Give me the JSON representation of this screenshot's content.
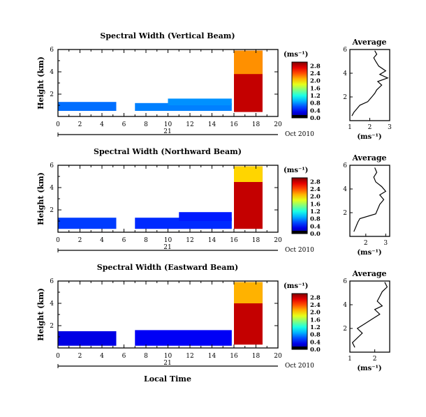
{
  "chart_data": [
    {
      "type": "heatmap",
      "title": "Spectral Width (Vertical Beam)",
      "ylabel": "Height (km)",
      "y_ticks": [
        "2",
        "4",
        "6"
      ],
      "x_ticks": [
        "0",
        "2",
        "4",
        "6",
        "8",
        "10",
        "12",
        "14",
        "16",
        "18",
        "20"
      ],
      "date_day": "21",
      "date_month_year": "Oct 2010",
      "xlim": [
        0,
        20
      ],
      "ylim": [
        0,
        6
      ],
      "colorbar": {
        "unit": "(ms⁻¹)",
        "ticks": [
          "0.0",
          "0.4",
          "0.8",
          "1.2",
          "1.6",
          "2.0",
          "2.4",
          "2.8"
        ],
        "range": [
          0,
          3.0
        ]
      },
      "regions": [
        {
          "x": [
            0,
            5.3
          ],
          "y": [
            0.5,
            1.3
          ],
          "value": 0.7
        },
        {
          "x": [
            7.0,
            15.8
          ],
          "y": [
            0.5,
            1.2
          ],
          "value": 0.75
        },
        {
          "x": [
            10.0,
            15.8
          ],
          "y": [
            1.0,
            1.6
          ],
          "value": 0.8
        },
        {
          "x": [
            16.0,
            18.6
          ],
          "y": [
            0.4,
            5.9
          ],
          "value": 2.8
        },
        {
          "x": [
            16.0,
            18.6
          ],
          "y": [
            3.8,
            5.9
          ],
          "value": 2.2
        }
      ],
      "profile": {
        "title": "Average",
        "xlabel": "(ms⁻¹)",
        "x_ticks": [
          "1",
          "2",
          "3"
        ],
        "xlim": [
          1,
          3
        ],
        "y_ticks": [
          "2",
          "4",
          "6"
        ],
        "points": [
          [
            1.1,
            0.4
          ],
          [
            1.2,
            0.7
          ],
          [
            1.35,
            1.0
          ],
          [
            1.5,
            1.3
          ],
          [
            1.9,
            1.6
          ],
          [
            2.1,
            2.0
          ],
          [
            2.25,
            2.3
          ],
          [
            2.35,
            2.6
          ],
          [
            2.6,
            3.0
          ],
          [
            2.4,
            3.3
          ],
          [
            2.9,
            3.6
          ],
          [
            2.5,
            3.9
          ],
          [
            2.8,
            4.2
          ],
          [
            2.45,
            4.6
          ],
          [
            2.3,
            5.0
          ],
          [
            2.2,
            5.3
          ],
          [
            2.35,
            5.6
          ],
          [
            2.25,
            5.9
          ]
        ]
      }
    },
    {
      "type": "heatmap",
      "title": "Spectral Width (Northward Beam)",
      "ylabel": "Height (km)",
      "y_ticks": [
        "2",
        "4",
        "6"
      ],
      "x_ticks": [
        "0",
        "2",
        "4",
        "6",
        "8",
        "10",
        "12",
        "14",
        "16",
        "18",
        "20"
      ],
      "date_day": "21",
      "date_month_year": "Oct 2010",
      "xlim": [
        0,
        20
      ],
      "ylim": [
        0,
        6
      ],
      "colorbar": {
        "unit": "(ms⁻¹)",
        "ticks": [
          "0.0",
          "0.4",
          "0.8",
          "1.2",
          "1.6",
          "2.0",
          "2.4",
          "2.8"
        ],
        "range": [
          0,
          3.0
        ]
      },
      "regions": [
        {
          "x": [
            0,
            5.3
          ],
          "y": [
            0.3,
            1.3
          ],
          "value": 0.55
        },
        {
          "x": [
            7.0,
            15.8
          ],
          "y": [
            0.3,
            1.3
          ],
          "value": 0.5
        },
        {
          "x": [
            11.0,
            15.8
          ],
          "y": [
            1.0,
            1.8
          ],
          "value": 0.45
        },
        {
          "x": [
            16.0,
            18.6
          ],
          "y": [
            0.3,
            5.9
          ],
          "value": 2.8
        },
        {
          "x": [
            16.0,
            18.6
          ],
          "y": [
            4.5,
            5.9
          ],
          "value": 2.0
        }
      ],
      "profile": {
        "title": "Average",
        "xlabel": "(ms⁻¹)",
        "x_ticks": [
          "2",
          "3"
        ],
        "xlim": [
          1.2,
          3.2
        ],
        "y_ticks": [
          "2",
          "4",
          "6"
        ],
        "points": [
          [
            1.4,
            0.4
          ],
          [
            1.5,
            0.8
          ],
          [
            1.6,
            1.2
          ],
          [
            1.7,
            1.5
          ],
          [
            2.5,
            1.9
          ],
          [
            2.6,
            2.3
          ],
          [
            2.7,
            2.7
          ],
          [
            2.9,
            3.1
          ],
          [
            2.7,
            3.5
          ],
          [
            3.0,
            3.8
          ],
          [
            2.8,
            4.2
          ],
          [
            2.5,
            4.6
          ],
          [
            2.4,
            5.0
          ],
          [
            2.55,
            5.4
          ],
          [
            2.45,
            5.8
          ]
        ]
      }
    },
    {
      "type": "heatmap",
      "title": "Spectral Width (Eastward Beam)",
      "ylabel": "Height (km)",
      "y_ticks": [
        "2",
        "4",
        "6"
      ],
      "x_ticks": [
        "0",
        "2",
        "4",
        "6",
        "8",
        "10",
        "12",
        "14",
        "16",
        "18",
        "20"
      ],
      "date_day": "21",
      "date_month_year": "Oct 2010",
      "xlabel": "Local Time",
      "xlim": [
        0,
        20
      ],
      "ylim": [
        0,
        6
      ],
      "colorbar": {
        "unit": "(ms⁻¹)",
        "ticks": [
          "0.0",
          "0.4",
          "0.8",
          "1.2",
          "1.6",
          "2.0",
          "2.4",
          "2.8"
        ],
        "range": [
          0,
          3.0
        ]
      },
      "regions": [
        {
          "x": [
            0,
            5.3
          ],
          "y": [
            0.2,
            1.5
          ],
          "value": 0.3
        },
        {
          "x": [
            7.0,
            15.8
          ],
          "y": [
            0.2,
            1.6
          ],
          "value": 0.35
        },
        {
          "x": [
            16.0,
            18.6
          ],
          "y": [
            0.3,
            5.9
          ],
          "value": 2.8
        },
        {
          "x": [
            16.0,
            18.6
          ],
          "y": [
            4.0,
            5.9
          ],
          "value": 2.1
        }
      ],
      "profile": {
        "title": "Average",
        "xlabel": "(ms⁻¹)",
        "x_ticks": [
          "1",
          "2"
        ],
        "xlim": [
          1.0,
          2.6
        ],
        "y_ticks": [
          "2",
          "4",
          "6"
        ],
        "points": [
          [
            1.2,
            0.4
          ],
          [
            1.1,
            0.8
          ],
          [
            1.3,
            1.2
          ],
          [
            1.5,
            1.6
          ],
          [
            1.3,
            2.0
          ],
          [
            1.6,
            2.4
          ],
          [
            1.9,
            2.8
          ],
          [
            2.2,
            3.2
          ],
          [
            2.0,
            3.6
          ],
          [
            2.3,
            3.9
          ],
          [
            2.1,
            4.3
          ],
          [
            2.2,
            4.7
          ],
          [
            2.3,
            5.1
          ],
          [
            2.5,
            5.5
          ],
          [
            2.4,
            5.9
          ]
        ]
      }
    }
  ]
}
